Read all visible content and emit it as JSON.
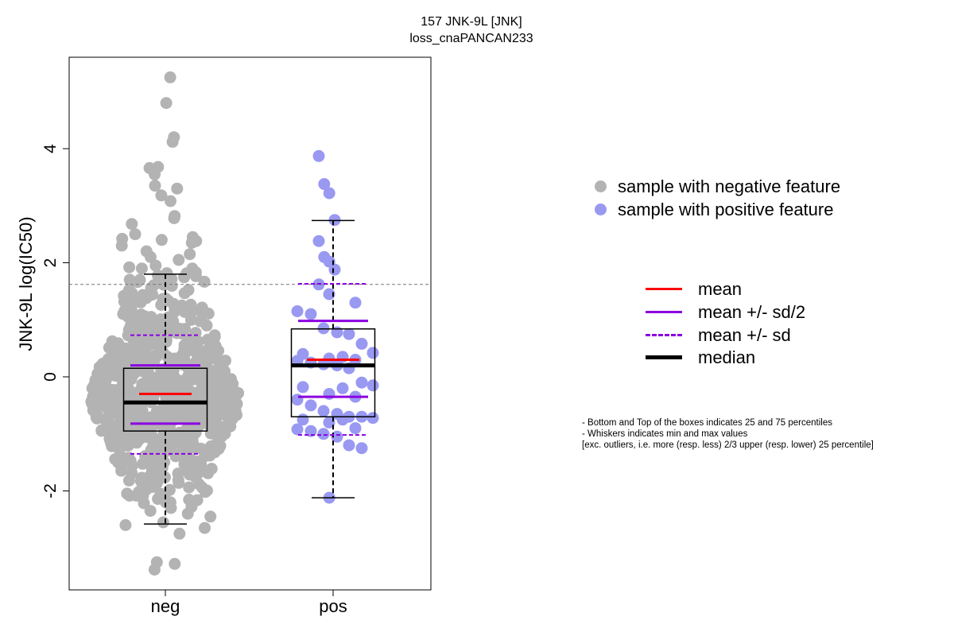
{
  "chart_data": {
    "type": "box-beeswarm",
    "title": "157 JNK-9L [JNK]",
    "subtitle": "loss_cnaPANCAN233",
    "ylabel": "JNK-9L log(IC50)",
    "ylim": [
      -3.75,
      5.6
    ],
    "yticks": [
      -2,
      0,
      2,
      4
    ],
    "threshold": 1.62,
    "categories": [
      "neg",
      "pos"
    ],
    "groups": [
      {
        "name": "neg",
        "color": "#b3b3b3",
        "stats": {
          "min": -2.58,
          "q1": -0.95,
          "median": -0.45,
          "q3": 0.15,
          "max": 1.8,
          "mean": -0.3,
          "sd_half_low": -0.82,
          "sd_half_high": 0.2,
          "sd_low": -1.35,
          "sd_high": 0.73
        },
        "points": [
          5.25,
          4.8,
          4.2,
          4.12,
          3.68,
          3.66,
          3.55,
          3.35,
          3.3,
          3.18,
          3.08,
          2.82,
          2.78,
          2.68,
          2.5,
          2.45,
          2.42,
          2.4,
          2.38,
          2.35,
          2.3,
          2.2,
          2.15,
          2.1,
          2.05,
          1.95,
          1.9,
          1.9,
          1.92,
          -2.28,
          -2.3,
          -2.35,
          -2.4,
          -2.45,
          -2.55,
          -2.6,
          -2.65,
          -2.75,
          -3.25,
          -3.28,
          -3.38
        ]
      },
      {
        "name": "pos",
        "color": "#9999f2",
        "stats": {
          "min": -2.12,
          "q1": -0.7,
          "median": 0.2,
          "q3": 0.84,
          "max": 2.74,
          "mean": 0.3,
          "sd_half_low": -0.35,
          "sd_half_high": 0.98,
          "sd_low": -1.02,
          "sd_high": 1.63
        },
        "points": [
          3.87,
          3.38,
          3.22,
          2.75,
          2.38,
          2.1,
          2.02,
          1.88,
          1.62,
          1.45,
          1.3,
          1.15,
          1.1,
          0.85,
          0.78,
          0.75,
          0.58,
          0.42,
          0.4,
          0.35,
          0.32,
          0.3,
          0.28,
          0.25,
          0.22,
          0.2,
          0.15,
          -0.1,
          -0.15,
          -0.18,
          -0.2,
          -0.3,
          -0.35,
          -0.4,
          -0.5,
          -0.6,
          -0.65,
          -0.7,
          -0.7,
          -0.72,
          -0.75,
          -0.75,
          -0.8,
          -0.9,
          -0.92,
          -0.95,
          -1.0,
          -1.05,
          -1.2,
          -1.25,
          -2.12
        ]
      }
    ]
  },
  "legend_points": [
    {
      "label": "sample with negative feature",
      "color": "#b3b3b3"
    },
    {
      "label": "sample with positive feature",
      "color": "#9999f2"
    }
  ],
  "legend_lines": [
    {
      "label": "mean",
      "color": "#ff0000",
      "style": "solid"
    },
    {
      "label": "mean +/- sd/2",
      "color": "#8b00e0",
      "style": "solid"
    },
    {
      "label": "mean +/- sd",
      "color": "#8b00e0",
      "style": "dashed"
    },
    {
      "label": "median",
      "color": "#000000",
      "style": "thick"
    }
  ],
  "notes": [
    "- Bottom and Top of the boxes indicates 25 and 75 percentiles",
    "- Whiskers indicates min and max values",
    "[exc. outliers, i.e. more (resp. less) 2/3 upper (resp. lower) 25 percentile]"
  ]
}
